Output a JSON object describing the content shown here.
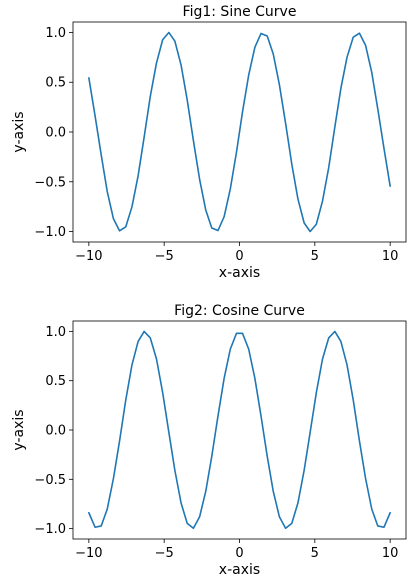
{
  "chart_data": [
    {
      "type": "line",
      "title": "Fig1: Sine Curve",
      "xlabel": "x-axis",
      "ylabel": "y-axis",
      "xlim": [
        -10,
        10
      ],
      "ylim": [
        -1.0,
        1.0
      ],
      "xticks": [
        -10,
        -5,
        0,
        5,
        10
      ],
      "xtick_labels": [
        "−10",
        "−5",
        "0",
        "5",
        "10"
      ],
      "yticks": [
        1.0,
        0.5,
        0.0,
        -0.5,
        -1.0
      ],
      "ytick_labels": [
        "1.0",
        "0.5",
        "0.0",
        "−0.5",
        "−1.0"
      ],
      "grid": false,
      "color": "#1f77b4",
      "series": [
        {
          "function": "sin",
          "x": [
            -10.0,
            -9.59,
            -9.18,
            -8.78,
            -8.37,
            -7.96,
            -7.55,
            -7.14,
            -6.73,
            -6.33,
            -5.92,
            -5.51,
            -5.1,
            -4.69,
            -4.29,
            -3.88,
            -3.47,
            -3.06,
            -2.65,
            -2.24,
            -1.84,
            -1.43,
            -1.02,
            -0.61,
            -0.2,
            0.2,
            0.61,
            1.02,
            1.43,
            1.84,
            2.24,
            2.65,
            3.06,
            3.47,
            3.88,
            4.29,
            4.69,
            5.1,
            5.51,
            5.92,
            6.33,
            6.73,
            7.14,
            7.55,
            7.96,
            8.37,
            8.78,
            9.18,
            9.59,
            10.0
          ],
          "y": [
            0.544,
            0.165,
            -0.23,
            -0.598,
            -0.87,
            -0.993,
            -0.953,
            -0.753,
            -0.44,
            -0.051,
            0.359,
            0.694,
            0.927,
            1.0,
            0.913,
            0.674,
            0.322,
            -0.087,
            -0.474,
            -0.784,
            -0.964,
            -0.99,
            -0.851,
            -0.572,
            -0.202,
            0.202,
            0.572,
            0.851,
            0.99,
            0.964,
            0.784,
            0.474,
            0.087,
            -0.322,
            -0.674,
            -0.913,
            -1.0,
            -0.927,
            -0.694,
            -0.359,
            0.051,
            0.44,
            0.753,
            0.953,
            0.993,
            0.87,
            0.598,
            0.23,
            -0.165,
            -0.544
          ]
        }
      ]
    },
    {
      "type": "line",
      "title": "Fig2: Cosine Curve",
      "xlabel": "x-axis",
      "ylabel": "y-axis",
      "xlim": [
        -10,
        10
      ],
      "ylim": [
        -1.0,
        1.0
      ],
      "xticks": [
        -10,
        -5,
        0,
        5,
        10
      ],
      "xtick_labels": [
        "−10",
        "−5",
        "0",
        "5",
        "10"
      ],
      "yticks": [
        1.0,
        0.5,
        0.0,
        -0.5,
        -1.0
      ],
      "ytick_labels": [
        "1.0",
        "0.5",
        "0.0",
        "−0.5",
        "−1.0"
      ],
      "grid": false,
      "color": "#1f77b4",
      "series": [
        {
          "function": "cos",
          "x": [
            -10.0,
            -9.59,
            -9.18,
            -8.78,
            -8.37,
            -7.96,
            -7.55,
            -7.14,
            -6.73,
            -6.33,
            -5.92,
            -5.51,
            -5.1,
            -4.69,
            -4.29,
            -3.88,
            -3.47,
            -3.06,
            -2.65,
            -2.24,
            -1.84,
            -1.43,
            -1.02,
            -0.61,
            -0.2,
            0.2,
            0.61,
            1.02,
            1.43,
            1.84,
            2.24,
            2.65,
            3.06,
            3.47,
            3.88,
            4.29,
            4.69,
            5.1,
            5.51,
            5.92,
            6.33,
            6.73,
            7.14,
            7.55,
            7.96,
            8.37,
            8.78,
            9.18,
            9.59,
            10.0
          ],
          "y": [
            -0.839,
            -0.986,
            -0.973,
            -0.802,
            -0.493,
            -0.11,
            0.304,
            0.658,
            0.898,
            0.999,
            0.933,
            0.72,
            0.379,
            -0.023,
            -0.409,
            -0.739,
            -0.947,
            -0.996,
            -0.881,
            -0.622,
            -0.266,
            0.141,
            0.524,
            0.82,
            0.98,
            0.98,
            0.82,
            0.524,
            0.141,
            -0.266,
            -0.622,
            -0.881,
            -0.996,
            -0.947,
            -0.739,
            -0.409,
            -0.023,
            0.379,
            0.72,
            0.933,
            0.999,
            0.898,
            0.658,
            0.304,
            -0.11,
            -0.493,
            -0.802,
            -0.973,
            -0.986,
            -0.839
          ]
        }
      ]
    }
  ]
}
